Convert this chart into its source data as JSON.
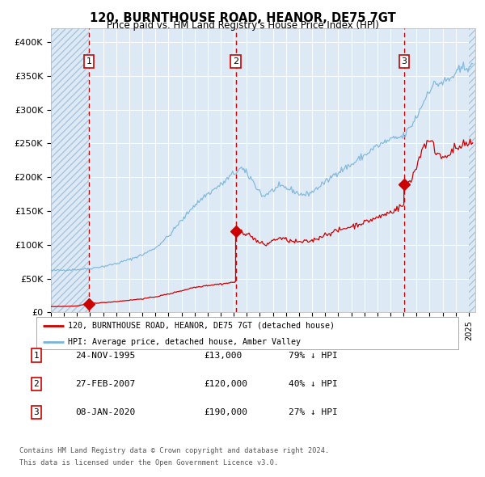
{
  "title": "120, BURNTHOUSE ROAD, HEANOR, DE75 7GT",
  "subtitle": "Price paid vs. HM Land Registry's House Price Index (HPI)",
  "ylim": [
    0,
    420000
  ],
  "yticks": [
    0,
    50000,
    100000,
    150000,
    200000,
    250000,
    300000,
    350000,
    400000
  ],
  "ytick_labels": [
    "£0",
    "£50K",
    "£100K",
    "£150K",
    "£200K",
    "£250K",
    "£300K",
    "£350K",
    "£400K"
  ],
  "hpi_color": "#7ab4d8",
  "price_color": "#cc0000",
  "sale_marker_color": "#cc0000",
  "dashed_line_color": "#cc0000",
  "background_color": "#ddeaf6",
  "grid_color": "#ffffff",
  "sale1_date": 1995.9,
  "sale1_price": 13000,
  "sale2_date": 2007.15,
  "sale2_price": 120000,
  "sale3_date": 2020.04,
  "sale3_price": 190000,
  "legend_line1": "120, BURNTHOUSE ROAD, HEANOR, DE75 7GT (detached house)",
  "legend_line2": "HPI: Average price, detached house, Amber Valley",
  "table_rows": [
    {
      "num": "1",
      "date": "24-NOV-1995",
      "price": "£13,000",
      "hpi": "79% ↓ HPI"
    },
    {
      "num": "2",
      "date": "27-FEB-2007",
      "price": "£120,000",
      "hpi": "40% ↓ HPI"
    },
    {
      "num": "3",
      "date": "08-JAN-2020",
      "price": "£190,000",
      "hpi": "27% ↓ HPI"
    }
  ],
  "footnote1": "Contains HM Land Registry data © Crown copyright and database right 2024.",
  "footnote2": "This data is licensed under the Open Government Licence v3.0.",
  "xmin": 1993.0,
  "xmax": 2025.5,
  "hatch_end": 1995.9,
  "hatch_start_right": 2025.0
}
